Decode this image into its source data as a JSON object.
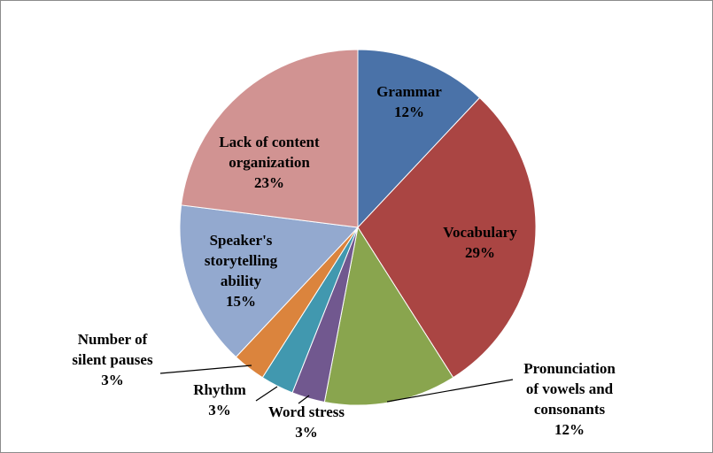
{
  "chart_data": {
    "type": "pie",
    "title": "",
    "slices": [
      {
        "label_lines": [
          "Grammar",
          "12%"
        ],
        "value": 12,
        "color": "#4a72a8"
      },
      {
        "label_lines": [
          "Vocabulary",
          "29%"
        ],
        "value": 29,
        "color": "#aa4543"
      },
      {
        "label_lines": [
          "Pronunciation",
          "of vowels and",
          "consonants",
          "12%"
        ],
        "value": 12,
        "color": "#89a54e"
      },
      {
        "label_lines": [
          "Word stress",
          "3%"
        ],
        "value": 3,
        "color": "#71588f"
      },
      {
        "label_lines": [
          "Rhythm",
          "3%"
        ],
        "value": 3,
        "color": "#4198af"
      },
      {
        "label_lines": [
          "Number of",
          "silent pauses",
          "3%"
        ],
        "value": 3,
        "color": "#db843d"
      },
      {
        "label_lines": [
          "Speaker's",
          "storytelling",
          "ability",
          "15%"
        ],
        "value": 15,
        "color": "#93a9cf"
      },
      {
        "label_lines": [
          "Lack of content",
          "organization",
          "23%"
        ],
        "value": 23,
        "color": "#d19392"
      }
    ],
    "legend": "none"
  }
}
